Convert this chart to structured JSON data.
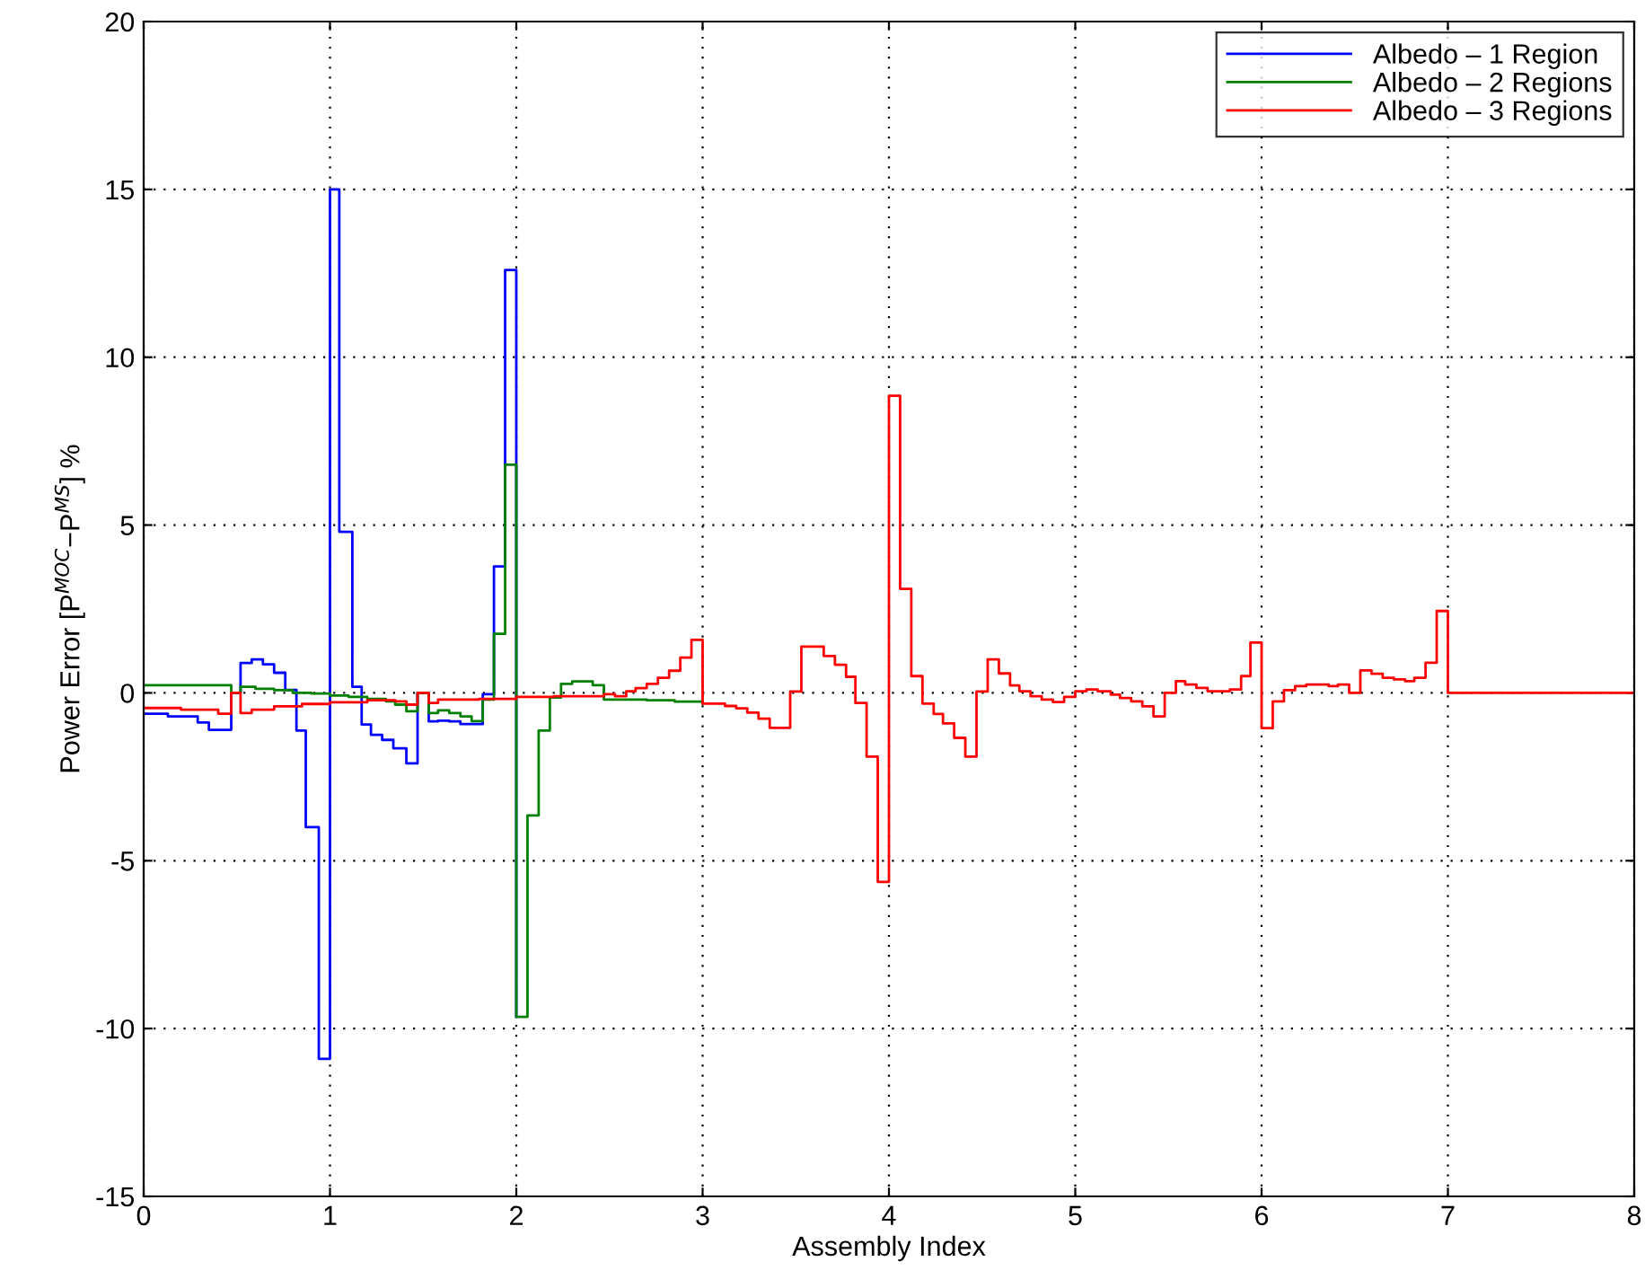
{
  "chart_data": {
    "type": "step",
    "xlabel": "Assembly Index",
    "ylabel": "Power Error [P$^{MOC}$−P$^{MS}$] %",
    "xlim": [
      0,
      8
    ],
    "ylim": [
      -15,
      20
    ],
    "xticks": [
      0,
      1,
      2,
      3,
      4,
      5,
      6,
      7,
      8
    ],
    "yticks": [
      -15,
      -10,
      -5,
      0,
      5,
      10,
      15,
      20
    ],
    "grid": true,
    "legend": "top right",
    "line_style": "solid",
    "marker": "none",
    "series": [
      {
        "name": "Albedo – 1 Region",
        "color": "#0000ff",
        "x": [
          0,
          0.13,
          0.29,
          0.35,
          0.47,
          0.52,
          0.58,
          0.64,
          0.7,
          0.76,
          0.82,
          0.87,
          0.94,
          1.0,
          1.05,
          1.12,
          1.17,
          1.22,
          1.28,
          1.34,
          1.41,
          1.47,
          1.53,
          1.58,
          1.64,
          1.7,
          1.76,
          1.82,
          1.88,
          1.94,
          2.0
        ],
        "values": [
          -0.62,
          -0.7,
          -0.88,
          -1.1,
          0.0,
          0.89,
          1.0,
          0.85,
          0.6,
          0.09,
          -1.12,
          -4.0,
          -10.9,
          15.0,
          4.8,
          0.18,
          -0.94,
          -1.25,
          -1.4,
          -1.65,
          -2.1,
          0.0,
          -0.85,
          -0.83,
          -0.85,
          -0.93,
          -0.93,
          -0.04,
          3.77,
          12.6,
          -9.65
        ]
      },
      {
        "name": "Albedo – 2 Regions",
        "color": "#008000",
        "x": [
          0,
          0.47,
          0.52,
          0.6,
          0.7,
          0.8,
          0.9,
          1.0,
          1.1,
          1.2,
          1.3,
          1.35,
          1.41,
          1.47,
          1.53,
          1.58,
          1.64,
          1.7,
          1.76,
          1.82,
          1.88,
          1.94,
          2.0,
          2.06,
          2.12,
          2.18,
          2.24,
          2.3,
          2.41,
          2.47,
          2.7,
          2.85,
          3.0
        ],
        "values": [
          0.23,
          0.0,
          0.18,
          0.12,
          0.08,
          0.0,
          -0.02,
          -0.08,
          -0.12,
          -0.18,
          -0.25,
          -0.35,
          -0.55,
          0.0,
          -0.6,
          -0.52,
          -0.6,
          -0.7,
          -0.84,
          -0.2,
          1.76,
          6.8,
          -9.65,
          -3.65,
          -1.12,
          -0.14,
          0.27,
          0.34,
          0.23,
          -0.2,
          -0.22,
          -0.26,
          -0.32
        ]
      },
      {
        "name": "Albedo – 3 Regions",
        "color": "#ff0000",
        "x": [
          0,
          0.2,
          0.4,
          0.47,
          0.52,
          0.58,
          0.7,
          0.85,
          1.0,
          1.2,
          1.35,
          1.41,
          1.47,
          1.53,
          1.58,
          1.8,
          2.0,
          2.2,
          2.47,
          2.53,
          2.59,
          2.64,
          2.7,
          2.76,
          2.82,
          2.88,
          2.94,
          3.0,
          3.12,
          3.18,
          3.24,
          3.3,
          3.36,
          3.47,
          3.53,
          3.65,
          3.71,
          3.77,
          3.82,
          3.88,
          3.94,
          4.0,
          4.06,
          4.12,
          4.18,
          4.24,
          4.29,
          4.35,
          4.41,
          4.47,
          4.53,
          4.59,
          4.65,
          4.7,
          4.76,
          4.82,
          4.88,
          4.94,
          5.0,
          5.06,
          5.12,
          5.19,
          5.24,
          5.3,
          5.36,
          5.42,
          5.48,
          5.54,
          5.59,
          5.65,
          5.71,
          5.83,
          5.89,
          5.94,
          6.0,
          6.06,
          6.12,
          6.18,
          6.24,
          6.3,
          6.36,
          6.41,
          6.47,
          6.53,
          6.59,
          6.65,
          6.71,
          6.77,
          6.82,
          6.88,
          6.94,
          7.0,
          8.0
        ],
        "values": [
          -0.45,
          -0.5,
          -0.62,
          0.0,
          -0.6,
          -0.5,
          -0.4,
          -0.33,
          -0.28,
          -0.22,
          -0.25,
          -0.35,
          0.0,
          -0.3,
          -0.2,
          -0.18,
          -0.12,
          -0.1,
          -0.04,
          -0.1,
          0.05,
          0.14,
          0.27,
          0.45,
          0.66,
          1.05,
          1.58,
          -0.32,
          -0.39,
          -0.46,
          -0.59,
          -0.77,
          -1.04,
          0.04,
          1.38,
          1.1,
          0.84,
          0.48,
          -0.3,
          -1.9,
          -5.63,
          8.85,
          3.1,
          0.5,
          -0.32,
          -0.63,
          -0.91,
          -1.34,
          -1.9,
          0.04,
          1.0,
          0.58,
          0.22,
          0.05,
          -0.1,
          -0.2,
          -0.27,
          -0.12,
          0.05,
          0.1,
          0.05,
          -0.05,
          -0.15,
          -0.25,
          -0.4,
          -0.7,
          0.0,
          0.35,
          0.25,
          0.15,
          0.05,
          0.1,
          0.5,
          1.5,
          -1.05,
          -0.25,
          0.08,
          0.2,
          0.25,
          0.25,
          0.2,
          0.25,
          0.0,
          0.67,
          0.57,
          0.45,
          0.4,
          0.35,
          0.45,
          0.9,
          2.44,
          0.0,
          0.0
        ]
      }
    ]
  }
}
